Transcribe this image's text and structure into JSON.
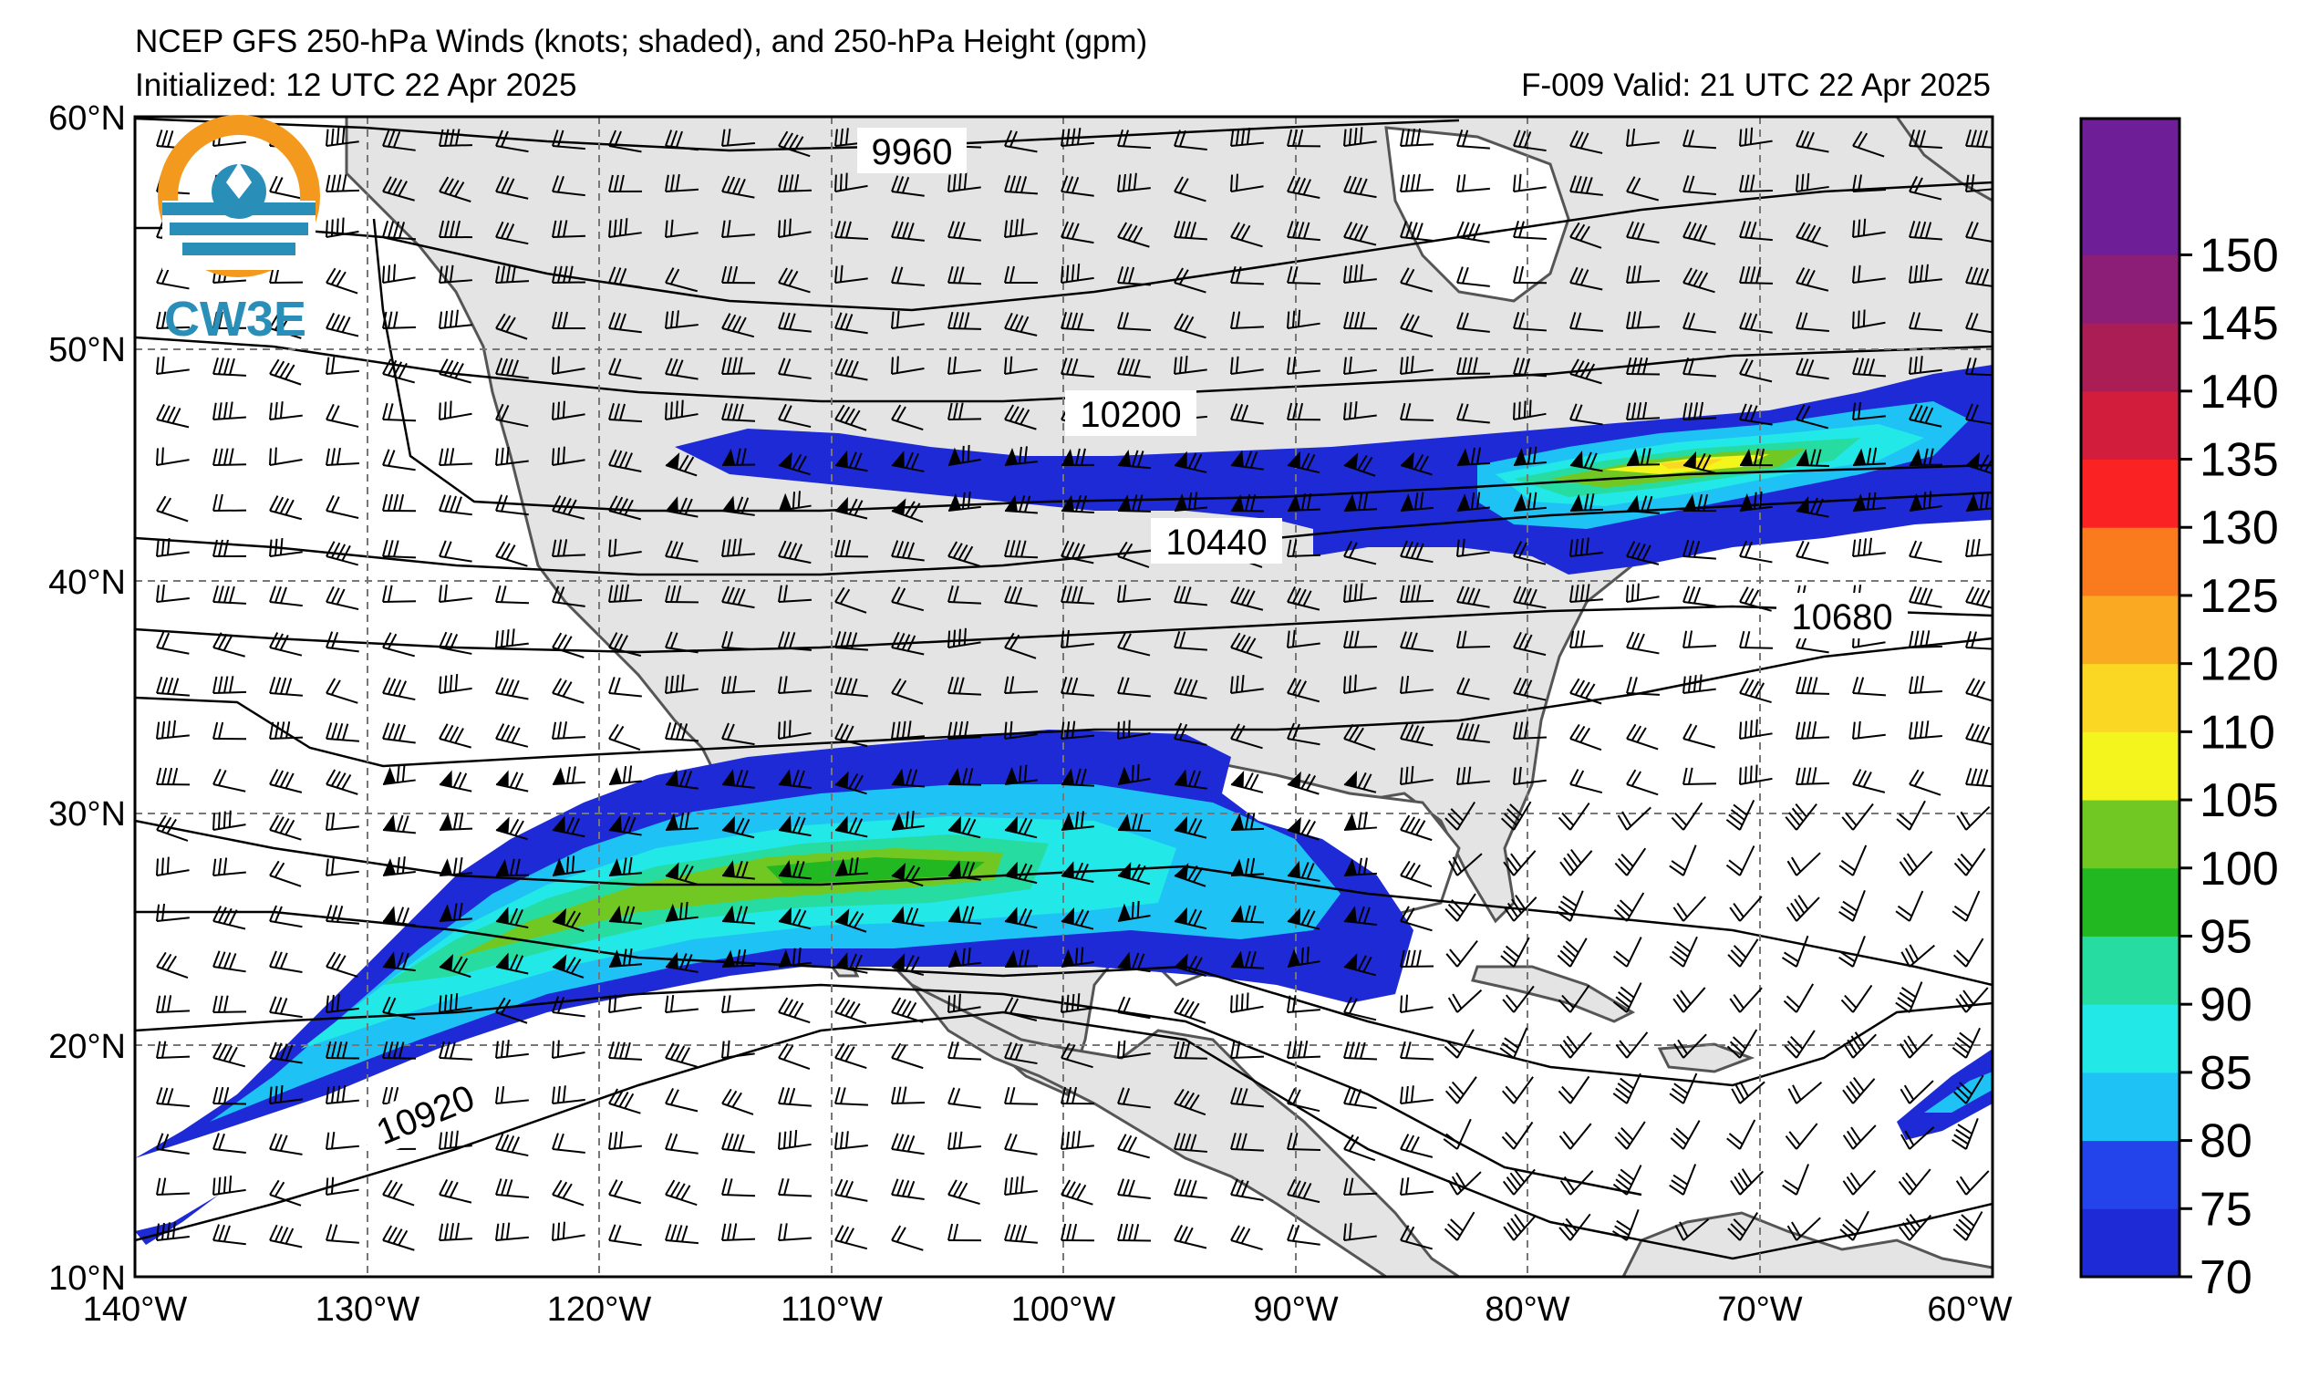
{
  "header": {
    "title": "NCEP GFS 250-hPa Winds (knots; shaded), and 250-hPa Height (gpm)",
    "initialized": "Initialized: 12 UTC 22 Apr 2025",
    "valid": "F-009  Valid: 21 UTC 22 Apr 2025"
  },
  "logo": {
    "text": "CW3E"
  },
  "map": {
    "lon_range": [
      -140,
      -60
    ],
    "lat_range": [
      10,
      60
    ],
    "lat_ticks": [
      "60°N",
      "50°N",
      "40°N",
      "30°N",
      "20°N",
      "10°N"
    ],
    "lon_ticks": [
      "140°W",
      "130°W",
      "120°W",
      "110°W",
      "100°W",
      "90°W",
      "80°W",
      "70°W",
      "60°W"
    ],
    "height_contour_labels": [
      "9960",
      "10200",
      "10440",
      "10680",
      "10920"
    ],
    "land_color": "#e4e4e4",
    "ocean_color": "#ffffff"
  },
  "colorbar": {
    "levels": [
      "70",
      "75",
      "80",
      "85",
      "90",
      "95",
      "100",
      "105",
      "110",
      "120",
      "125",
      "130",
      "135",
      "140",
      "145",
      "150"
    ],
    "colors": [
      "#1e2ad6",
      "#2344ea",
      "#1ec2f5",
      "#22e8e8",
      "#27dca0",
      "#22b822",
      "#72c823",
      "#f5f51e",
      "#fad722",
      "#faaa22",
      "#fa7a1e",
      "#fa2222",
      "#d21e3c",
      "#aa1e55",
      "#8c1e78",
      "#6e1e96"
    ]
  }
}
